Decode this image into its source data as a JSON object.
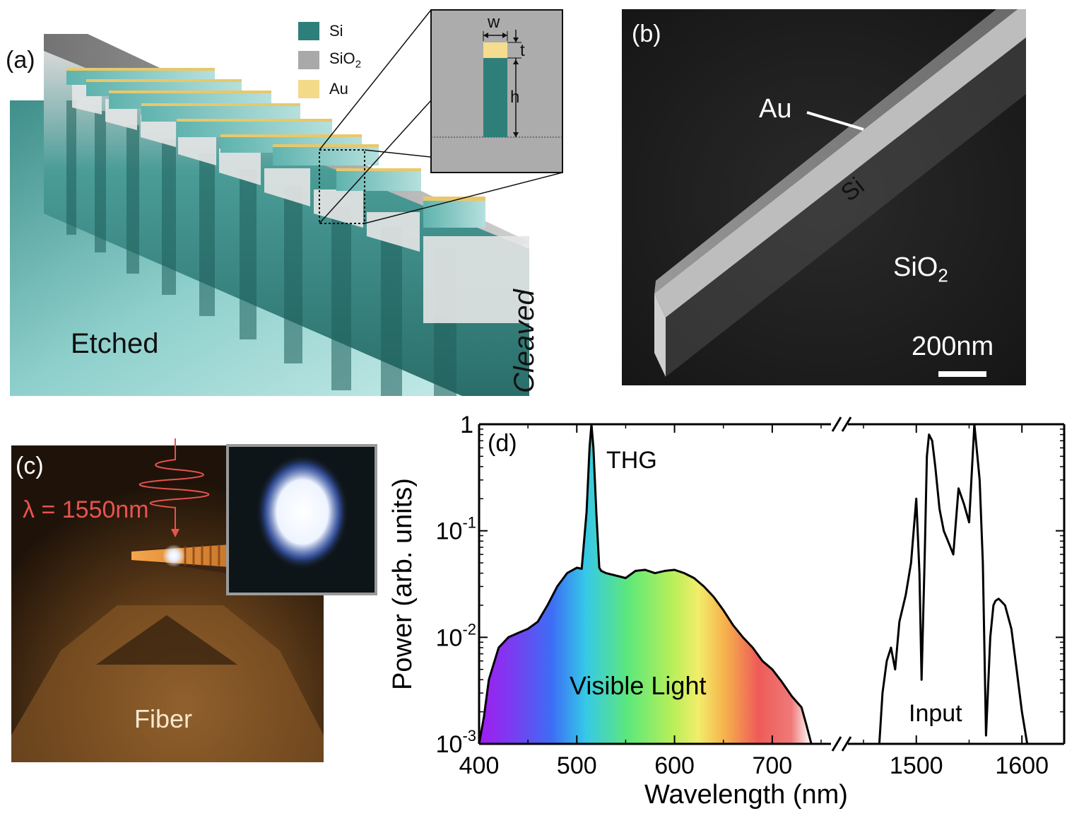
{
  "panel_a": {
    "label": "(a)",
    "legend": [
      {
        "name": "Si",
        "color": "#2e7f7a"
      },
      {
        "name": "SiO",
        "sub": "2",
        "color": "#a9a9a9"
      },
      {
        "name": "Au",
        "color": "#f3d98a"
      }
    ],
    "inset_labels": {
      "w": "w",
      "t": "t",
      "h": "h"
    },
    "etched_label": "Etched",
    "cleaved_label": "Cleaved"
  },
  "panel_b": {
    "label": "(b)",
    "au_label": "Au",
    "si_label": "Si",
    "sio2_label": "SiO",
    "sio2_sub": "2",
    "scalebar_label": "200nm"
  },
  "panel_c": {
    "label": "(c)",
    "wavelength_label": "λ = 1550nm",
    "fiber_label": "Fiber"
  },
  "chart_data": {
    "type": "line",
    "panel_label": "(d)",
    "xlabel": "Wavelength (nm)",
    "ylabel": "Power (arb. units)",
    "yscale": "log",
    "ylim": [
      0.001,
      1
    ],
    "ytick_labels": [
      {
        "base": "10",
        "exp": "-3"
      },
      {
        "base": "10",
        "exp": "-2"
      },
      {
        "base": "10",
        "exp": "-1"
      },
      {
        "base": "1",
        "exp": ""
      }
    ],
    "broken_x_axis": true,
    "segments": [
      {
        "xlim": [
          400,
          750
        ],
        "xticks": [
          "400",
          "500",
          "600",
          "700"
        ]
      },
      {
        "xlim": [
          1450,
          1640
        ],
        "xticks": [
          "1500",
          "1600"
        ]
      }
    ],
    "annotations": {
      "thg": "THG",
      "visible": "Visible Light",
      "input": "Input"
    },
    "series": [
      {
        "segment": 0,
        "x": [
          400,
          405,
          410,
          420,
          430,
          440,
          450,
          460,
          470,
          480,
          490,
          500,
          505,
          510,
          513,
          515,
          517,
          520,
          523,
          525,
          530,
          540,
          550,
          560,
          570,
          580,
          590,
          600,
          610,
          620,
          630,
          640,
          650,
          660,
          670,
          680,
          690,
          700,
          710,
          720,
          730,
          735,
          740
        ],
        "y": [
          0.001,
          0.0018,
          0.004,
          0.008,
          0.01,
          0.011,
          0.012,
          0.014,
          0.02,
          0.03,
          0.04,
          0.045,
          0.044,
          0.15,
          0.6,
          1.0,
          0.6,
          0.15,
          0.045,
          0.042,
          0.04,
          0.038,
          0.036,
          0.042,
          0.043,
          0.04,
          0.042,
          0.043,
          0.04,
          0.036,
          0.03,
          0.024,
          0.018,
          0.013,
          0.01,
          0.008,
          0.006,
          0.005,
          0.0038,
          0.0028,
          0.0022,
          0.0015,
          0.001
        ]
      },
      {
        "segment": 1,
        "x": [
          1465,
          1468,
          1472,
          1476,
          1480,
          1484,
          1490,
          1495,
          1500,
          1503,
          1505,
          1508,
          1510,
          1512,
          1515,
          1518,
          1522,
          1526,
          1530,
          1535,
          1540,
          1545,
          1550,
          1555,
          1560,
          1563,
          1566,
          1570,
          1573,
          1575,
          1578,
          1580,
          1584,
          1590,
          1595,
          1600,
          1605,
          1610,
          1615,
          1620
        ],
        "y": [
          0.001,
          0.003,
          0.006,
          0.008,
          0.005,
          0.014,
          0.025,
          0.05,
          0.2,
          0.04,
          0.004,
          0.06,
          0.5,
          0.8,
          0.7,
          0.4,
          0.16,
          0.1,
          0.08,
          0.06,
          0.25,
          0.18,
          0.12,
          1.0,
          0.3,
          0.05,
          0.0012,
          0.01,
          0.02,
          0.022,
          0.023,
          0.022,
          0.02,
          0.012,
          0.005,
          0.002,
          0.001,
          0.001,
          0.001,
          0.001
        ]
      }
    ]
  }
}
